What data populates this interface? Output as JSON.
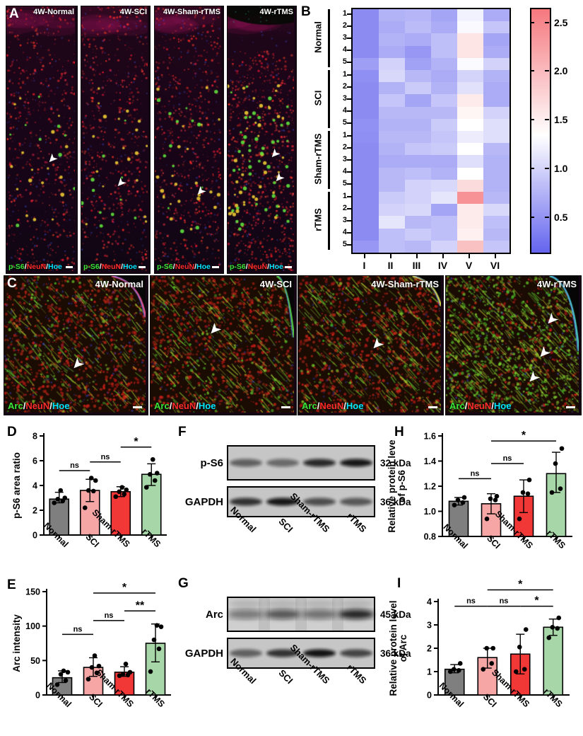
{
  "panels": {
    "A": {
      "letter": "A",
      "images": [
        {
          "title": "4W-Normal"
        },
        {
          "title": "4W-SCI"
        },
        {
          "title": "4W-Sham-rTMS"
        },
        {
          "title": "4W-rTMS"
        }
      ],
      "legend": [
        {
          "text": "p-S6",
          "color": "#39e639"
        },
        {
          "text": "NeuN",
          "color": "#ff2b2b"
        },
        {
          "text": "Hoe",
          "color": "#00e5ff"
        }
      ],
      "legend_separator": "/"
    },
    "B": {
      "letter": "B",
      "chart_data": {
        "type": "heatmap",
        "columns": [
          "I",
          "II",
          "III",
          "IV",
          "V",
          "VI"
        ],
        "row_groups": [
          {
            "label": "Normal",
            "row_labels": [
              "1",
              "2",
              "3",
              "4",
              "5"
            ],
            "values": [
              [
                0.45,
                0.75,
                0.78,
                0.65,
                1.25,
                0.7
              ],
              [
                0.45,
                0.7,
                0.82,
                0.7,
                1.3,
                0.9
              ],
              [
                0.45,
                0.75,
                0.7,
                0.85,
                1.6,
                0.65
              ],
              [
                0.45,
                0.7,
                0.55,
                0.85,
                1.6,
                0.7
              ],
              [
                0.6,
                1.0,
                0.62,
                0.75,
                1.32,
                1.0
              ]
            ]
          },
          {
            "label": "SCI",
            "row_labels": [
              "1",
              "2",
              "3",
              "4",
              "5"
            ],
            "values": [
              [
                0.48,
                1.05,
                0.8,
                0.7,
                1.02,
                0.75
              ],
              [
                0.45,
                0.75,
                0.95,
                0.75,
                1.12,
                0.7
              ],
              [
                0.45,
                0.9,
                0.65,
                0.9,
                1.55,
                0.7
              ],
              [
                0.45,
                0.8,
                0.8,
                0.8,
                1.45,
                1.0
              ],
              [
                0.5,
                0.75,
                0.75,
                0.95,
                1.35,
                1.1
              ]
            ]
          },
          {
            "label": "Sham-rTMS",
            "row_labels": [
              "1",
              "2",
              "3",
              "4",
              "5"
            ],
            "values": [
              [
                0.48,
                0.8,
                0.8,
                0.9,
                1.2,
                1.1
              ],
              [
                0.45,
                0.75,
                0.9,
                0.95,
                1.35,
                0.8
              ],
              [
                0.45,
                0.7,
                0.7,
                0.7,
                1.1,
                0.75
              ],
              [
                0.45,
                0.8,
                0.85,
                0.75,
                1.35,
                0.75
              ],
              [
                0.45,
                0.8,
                1.0,
                1.05,
                1.7,
                0.75
              ]
            ]
          },
          {
            "label": "rTMS",
            "row_labels": [
              "1",
              "2",
              "3",
              "4",
              "5"
            ],
            "values": [
              [
                0.45,
                0.95,
                1.0,
                1.15,
                2.4,
                0.8
              ],
              [
                0.45,
                1.0,
                1.05,
                0.65,
                1.55,
                1.05
              ],
              [
                0.45,
                1.15,
                0.8,
                0.85,
                1.55,
                0.85
              ],
              [
                0.45,
                0.85,
                0.95,
                0.85,
                1.5,
                0.8
              ],
              [
                0.55,
                0.85,
                0.8,
                1.0,
                1.95,
                0.9
              ]
            ]
          }
        ],
        "colorbar": {
          "min": 0.15,
          "max": 2.65,
          "mid_white": 1.35,
          "tick_values": [
            0.5,
            1.0,
            1.5,
            2.0,
            2.5
          ],
          "tick_labels": [
            "0.5",
            "1.0",
            "1.5",
            "2.0",
            "2.5"
          ],
          "color_low": "#6464EE",
          "color_mid": "#FFFFFF",
          "color_high": "#F5787E"
        }
      }
    },
    "C": {
      "letter": "C",
      "images": [
        {
          "title": "4W-Normal"
        },
        {
          "title": "4W-SCI"
        },
        {
          "title": "4W-Sham-rTMS"
        },
        {
          "title": "4W-rTMS"
        }
      ],
      "legend": [
        {
          "text": "Arc",
          "color": "#39e639"
        },
        {
          "text": "NeuN",
          "color": "#ff2b2b"
        },
        {
          "text": "Hoe",
          "color": "#00e5ff"
        }
      ],
      "legend_separator": "/"
    },
    "D": {
      "letter": "D",
      "chart_data": {
        "type": "bar",
        "ylabel_lines": [
          "p-S6 area ratio"
        ],
        "ylim": [
          0,
          8
        ],
        "yticks": [
          0,
          2,
          4,
          6,
          8
        ],
        "ytick_labels": [
          "0",
          "2",
          "4",
          "6",
          "8"
        ],
        "categories": [
          "Normal",
          "SCI",
          "Sham-rTMS",
          "rTMS"
        ],
        "bar_colors": [
          "#7F7F7F",
          "#F7A6A6",
          "#F23737",
          "#A7D7A8"
        ],
        "values": [
          2.9,
          3.6,
          3.5,
          4.9
        ],
        "whiskers": [
          [
            2.6,
            3.45
          ],
          [
            2.7,
            4.5
          ],
          [
            3.1,
            3.9
          ],
          [
            4.0,
            5.75
          ]
        ],
        "points": [
          [
            2.6,
            2.75,
            2.9,
            3.0,
            3.6
          ],
          [
            2.2,
            3.55,
            3.6,
            4.4,
            4.6
          ],
          [
            3.1,
            3.3,
            3.5,
            3.65,
            3.85
          ],
          [
            3.85,
            4.4,
            4.9,
            5.0,
            6.1
          ]
        ],
        "sig": [
          {
            "from": 0,
            "to": 1,
            "y": 5.2,
            "label": "ns"
          },
          {
            "from": 1,
            "to": 2,
            "y": 5.9,
            "label": "ns"
          },
          {
            "from": 2,
            "to": 3,
            "y": 7.1,
            "label": "*"
          }
        ]
      }
    },
    "E": {
      "letter": "E",
      "chart_data": {
        "type": "bar",
        "ylabel_lines": [
          "Arc intensity"
        ],
        "ylim": [
          0,
          150
        ],
        "yticks": [
          0,
          50,
          100,
          150
        ],
        "ytick_labels": [
          "0",
          "50",
          "100",
          "150"
        ],
        "categories": [
          "Normal",
          "SCI",
          "Sham-rTMS",
          "rTMS"
        ],
        "bar_colors": [
          "#7F7F7F",
          "#F7A6A6",
          "#F23737",
          "#A7D7A8"
        ],
        "values": [
          25,
          40,
          33,
          75
        ],
        "whiskers": [
          [
            18,
            35
          ],
          [
            27,
            54
          ],
          [
            27,
            41
          ],
          [
            48,
            103
          ]
        ],
        "points": [
          [
            15,
            21,
            30,
            33,
            35
          ],
          [
            23,
            32,
            40,
            42,
            57
          ],
          [
            28,
            29,
            30,
            33,
            45
          ],
          [
            34,
            67,
            80,
            99,
            101
          ]
        ],
        "sig": [
          {
            "from": 0,
            "to": 1,
            "y": 88,
            "label": "ns"
          },
          {
            "from": 1,
            "to": 2,
            "y": 108,
            "label": "ns"
          },
          {
            "from": 2,
            "to": 3,
            "y": 122,
            "label": "**"
          },
          {
            "from": 1,
            "to": 3,
            "y": 148,
            "label": "*"
          }
        ]
      }
    },
    "F": {
      "letter": "F",
      "lanes": [
        "Normal",
        "SCI",
        "Sham-rTMS",
        "rTMS"
      ],
      "rows": [
        {
          "target": "p-S6",
          "kda": "32 kDa",
          "bands": [
            0.55,
            0.5,
            0.85,
            0.95
          ],
          "grainy": false
        },
        {
          "target": "GAPDH",
          "kda": "36 kDa",
          "bands": [
            0.8,
            0.95,
            0.65,
            0.6
          ],
          "grainy": false
        }
      ]
    },
    "G": {
      "letter": "G",
      "lanes": [
        "Normal",
        "SCI",
        "Sham-rTMS",
        "rTMS"
      ],
      "rows": [
        {
          "target": "Arc",
          "kda": "45 kDa",
          "bands": [
            0.4,
            0.6,
            0.45,
            0.88
          ],
          "grainy": true
        },
        {
          "target": "GAPDH",
          "kda": "36 kDa",
          "bands": [
            0.55,
            0.8,
            0.97,
            0.7
          ],
          "grainy": false
        }
      ]
    },
    "H": {
      "letter": "H",
      "chart_data": {
        "type": "bar",
        "ylabel_lines": [
          "Relative protein leve",
          "of p-S6"
        ],
        "ylim": [
          0.8,
          1.6
        ],
        "yticks": [
          0.8,
          1.0,
          1.2,
          1.4,
          1.6
        ],
        "ytick_labels": [
          "0.8",
          "1.0",
          "1.2",
          "1.4",
          "1.6"
        ],
        "categories": [
          "Normal",
          "SCI",
          "Sham-rTMS",
          "rTMS"
        ],
        "bar_colors": [
          "#7F7F7F",
          "#F7A6A6",
          "#F23737",
          "#A7D7A8"
        ],
        "values": [
          1.08,
          1.06,
          1.12,
          1.3
        ],
        "whiskers": [
          [
            1.05,
            1.11
          ],
          [
            0.98,
            1.14
          ],
          [
            0.99,
            1.25
          ],
          [
            1.15,
            1.47
          ]
        ],
        "points": [
          [
            1.05,
            1.07,
            1.09,
            1.11
          ],
          [
            0.94,
            1.09,
            1.1,
            1.12
          ],
          [
            0.94,
            1.14,
            1.15,
            1.25
          ],
          [
            1.15,
            1.18,
            1.38,
            1.5
          ]
        ],
        "sig": [
          {
            "from": 0,
            "to": 1,
            "y": 1.26,
            "label": "ns"
          },
          {
            "from": 1,
            "to": 2,
            "y": 1.38,
            "label": "ns"
          },
          {
            "from": 1,
            "to": 3,
            "y": 1.56,
            "label": "*"
          }
        ]
      }
    },
    "I": {
      "letter": "I",
      "chart_data": {
        "type": "bar",
        "ylabel_lines": [
          "Relative protein level",
          "of Arc"
        ],
        "ylim": [
          0,
          4
        ],
        "yticks": [
          0,
          1,
          2,
          3,
          4
        ],
        "ytick_labels": [
          "0",
          "1",
          "2",
          "3",
          "4"
        ],
        "categories": [
          "Normal",
          "SCI",
          "Sham-rTMS",
          "rTMS"
        ],
        "bar_colors": [
          "#7F7F7F",
          "#F7A6A6",
          "#F23737",
          "#A7D7A8"
        ],
        "values": [
          1.1,
          1.6,
          1.75,
          2.9
        ],
        "whiskers": [
          [
            0.95,
            1.3
          ],
          [
            1.15,
            2.0
          ],
          [
            0.9,
            2.6
          ],
          [
            2.55,
            3.25
          ]
        ],
        "points": [
          [
            1.0,
            1.05,
            1.1,
            1.35
          ],
          [
            1.1,
            1.35,
            2.0,
            2.0
          ],
          [
            1.0,
            1.1,
            2.05,
            2.8
          ],
          [
            2.45,
            2.85,
            2.9,
            3.3
          ]
        ],
        "sig": [
          {
            "from": 0,
            "to": 1,
            "y": 3.8,
            "label": "ns"
          },
          {
            "from": 1,
            "to": 2,
            "y": 3.8,
            "label": "ns"
          },
          {
            "from": 2,
            "to": 3,
            "y": 3.8,
            "label": "*"
          },
          {
            "from": 1,
            "to": 3,
            "y": 4.5,
            "label": "*"
          }
        ]
      }
    }
  }
}
